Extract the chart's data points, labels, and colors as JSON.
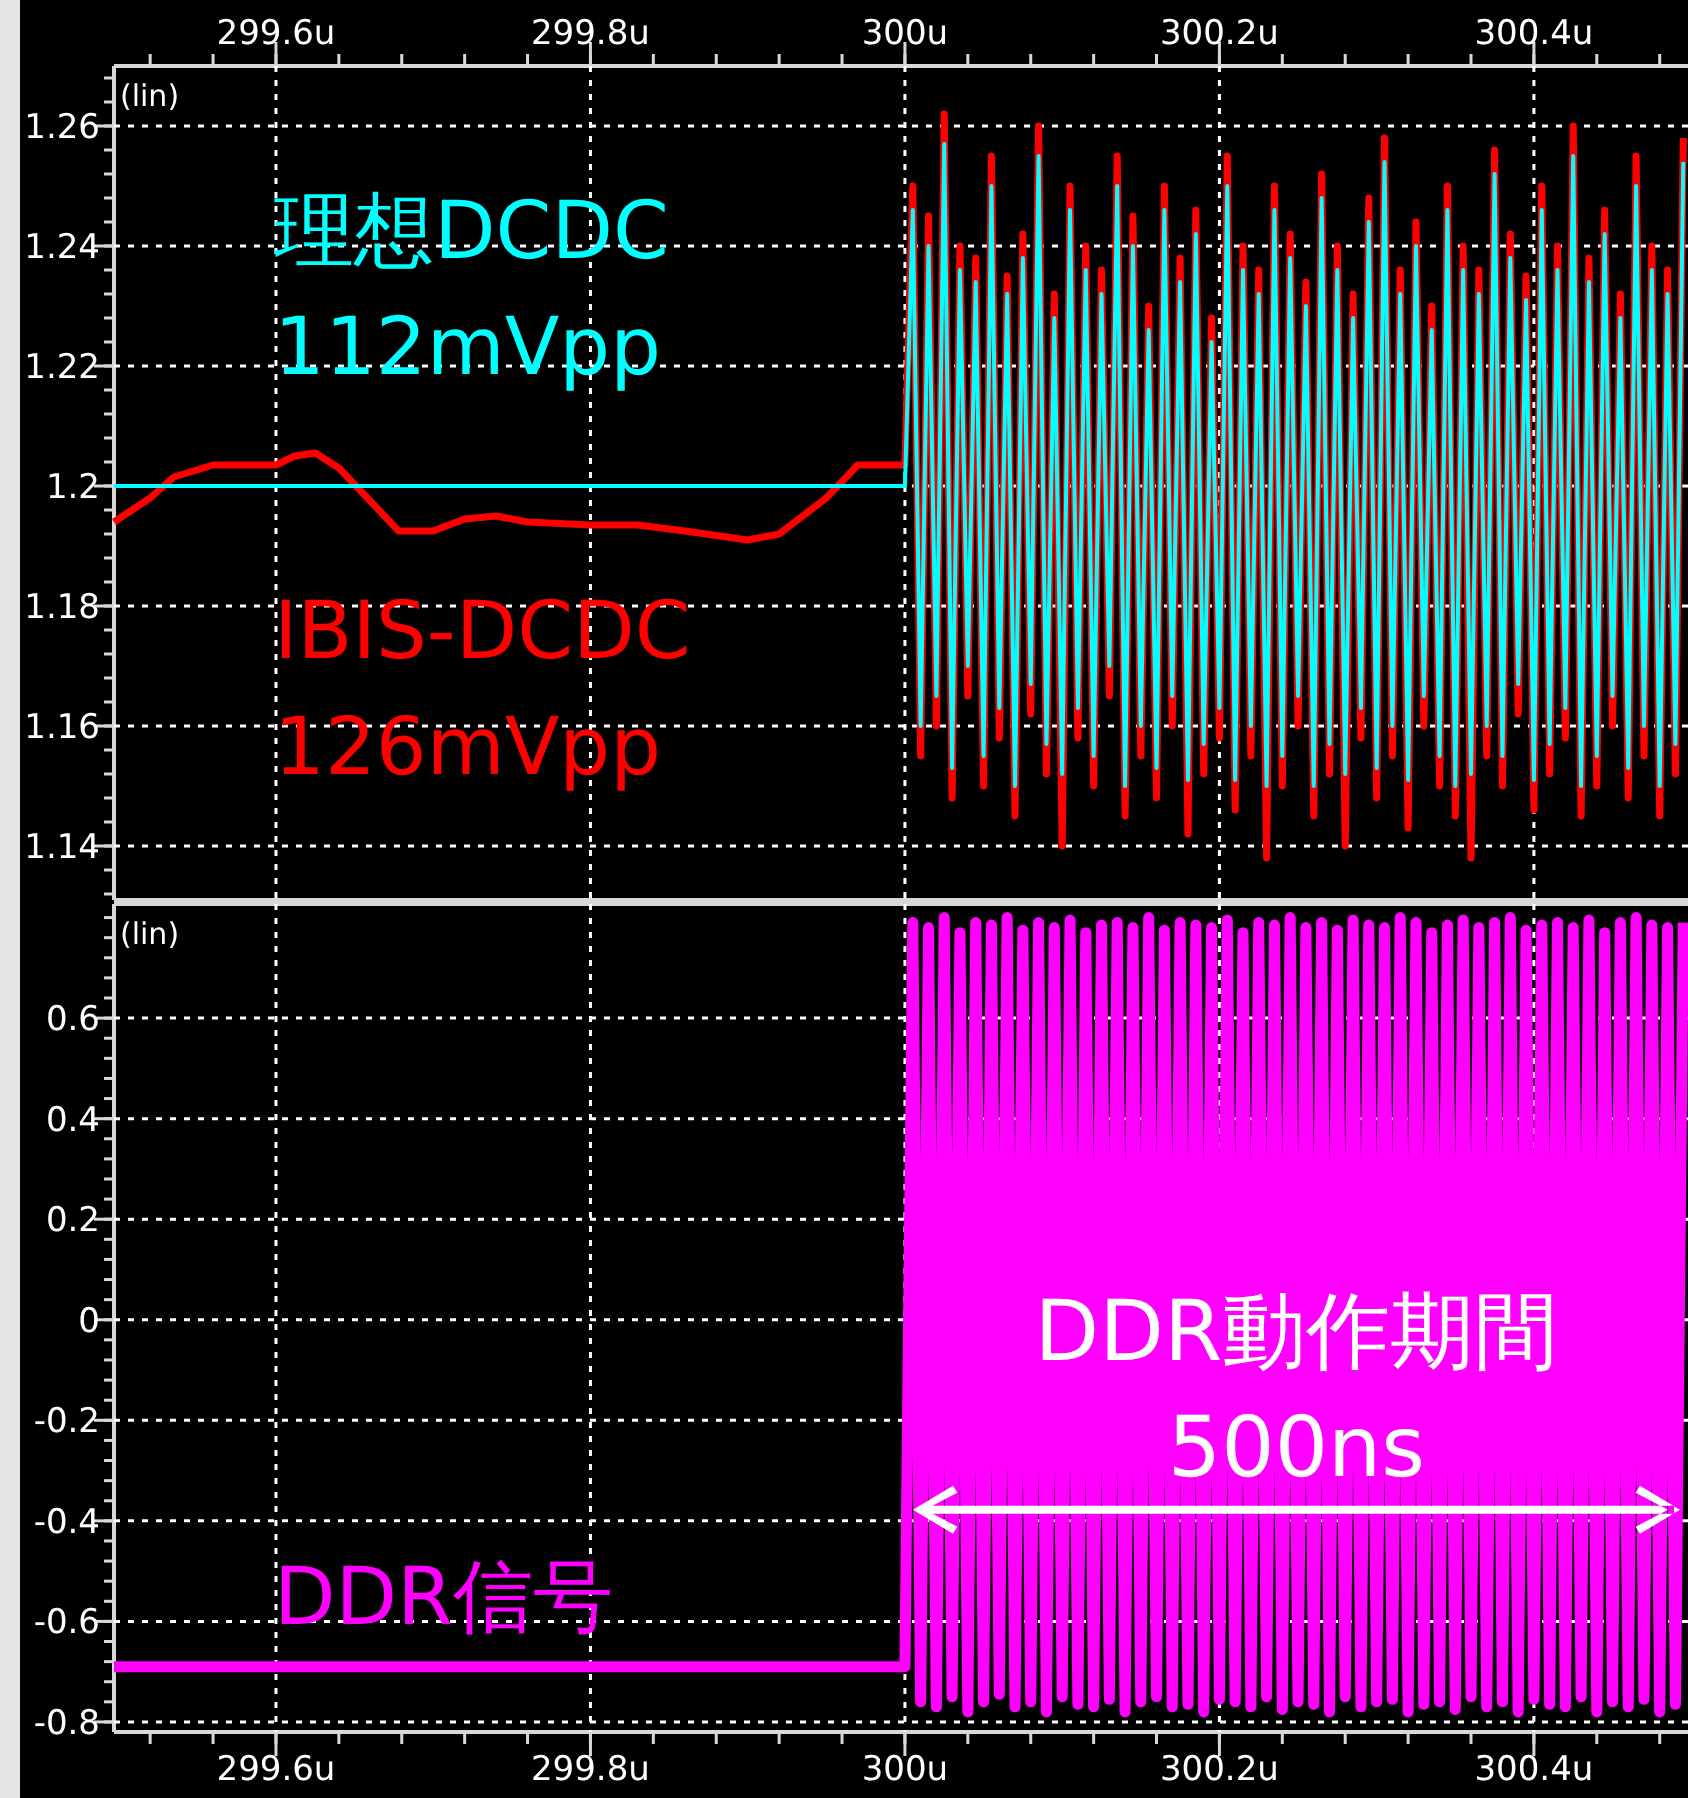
{
  "chart_data": [
    {
      "type": "line",
      "xlim": [
        299.497,
        300.498
      ],
      "xticks": [
        {
          "value": 299.6,
          "label": "299.6u"
        },
        {
          "value": 299.8,
          "label": "299.8u"
        },
        {
          "value": 300.0,
          "label": "300u"
        },
        {
          "value": 300.2,
          "label": "300.2u"
        },
        {
          "value": 300.4,
          "label": "300.4u"
        }
      ],
      "ylim": [
        1.131,
        1.27
      ],
      "yticks": [
        1.14,
        1.16,
        1.18,
        1.2,
        1.22,
        1.24,
        1.26
      ],
      "grid": true,
      "annotations": [
        "(lin)"
      ],
      "series": [
        {
          "name": "IBIS-DCDC 126mVpp",
          "color": "#ff0000",
          "x": [
            299.497,
            299.52,
            299.535,
            299.56,
            299.6,
            299.612,
            299.625,
            299.64,
            299.66,
            299.678,
            299.7,
            299.72,
            299.74,
            299.76,
            299.8,
            299.83,
            299.86,
            299.9,
            299.92,
            299.95,
            299.97,
            300.0,
            300.005,
            300.01,
            300.015,
            300.02,
            300.025,
            300.03,
            300.035,
            300.04,
            300.045,
            300.05,
            300.055,
            300.06,
            300.065,
            300.07,
            300.075,
            300.08,
            300.085,
            300.09,
            300.095,
            300.1,
            300.105,
            300.11,
            300.115,
            300.12,
            300.125,
            300.13,
            300.135,
            300.14,
            300.145,
            300.15,
            300.155,
            300.16,
            300.165,
            300.17,
            300.175,
            300.18,
            300.185,
            300.19,
            300.195,
            300.2,
            300.205,
            300.21,
            300.215,
            300.22,
            300.225,
            300.23,
            300.235,
            300.24,
            300.245,
            300.25,
            300.255,
            300.26,
            300.265,
            300.27,
            300.275,
            300.28,
            300.285,
            300.29,
            300.295,
            300.3,
            300.305,
            300.31,
            300.315,
            300.32,
            300.325,
            300.33,
            300.335,
            300.34,
            300.345,
            300.35,
            300.355,
            300.36,
            300.365,
            300.37,
            300.375,
            300.38,
            300.385,
            300.39,
            300.395,
            300.4,
            300.405,
            300.41,
            300.415,
            300.42,
            300.425,
            300.43,
            300.435,
            300.44,
            300.445,
            300.45,
            300.455,
            300.46,
            300.465,
            300.47,
            300.475,
            300.48,
            300.485,
            300.49,
            300.495
          ],
          "values": [
            1.194,
            1.198,
            1.2015,
            1.2035,
            1.2035,
            1.205,
            1.2055,
            1.203,
            1.1975,
            1.1925,
            1.1925,
            1.1945,
            1.195,
            1.194,
            1.1935,
            1.1935,
            1.1925,
            1.191,
            1.192,
            1.198,
            1.2035,
            1.2035,
            1.25,
            1.155,
            1.245,
            1.16,
            1.262,
            1.148,
            1.24,
            1.165,
            1.238,
            1.15,
            1.255,
            1.158,
            1.235,
            1.145,
            1.242,
            1.162,
            1.26,
            1.152,
            1.232,
            1.14,
            1.25,
            1.158,
            1.24,
            1.15,
            1.236,
            1.165,
            1.255,
            1.145,
            1.245,
            1.155,
            1.23,
            1.148,
            1.25,
            1.16,
            1.238,
            1.142,
            1.246,
            1.152,
            1.228,
            1.158,
            1.255,
            1.146,
            1.24,
            1.155,
            1.236,
            1.138,
            1.25,
            1.15,
            1.242,
            1.16,
            1.234,
            1.145,
            1.252,
            1.152,
            1.24,
            1.14,
            1.232,
            1.158,
            1.248,
            1.148,
            1.258,
            1.155,
            1.236,
            1.143,
            1.244,
            1.16,
            1.23,
            1.15,
            1.25,
            1.145,
            1.24,
            1.138,
            1.236,
            1.155,
            1.256,
            1.15,
            1.242,
            1.162,
            1.235,
            1.146,
            1.25,
            1.152,
            1.24,
            1.158,
            1.26,
            1.145,
            1.238,
            1.15,
            1.246,
            1.16,
            1.232,
            1.148,
            1.255,
            1.155,
            1.24,
            1.145,
            1.236,
            1.152,
            1.258
          ]
        },
        {
          "name": "理想DCDC 112mVpp",
          "color": "#00ffff",
          "x": [
            299.497,
            300.0,
            300.005,
            300.01,
            300.015,
            300.02,
            300.025,
            300.03,
            300.035,
            300.04,
            300.045,
            300.05,
            300.055,
            300.06,
            300.065,
            300.07,
            300.075,
            300.08,
            300.085,
            300.09,
            300.095,
            300.1,
            300.105,
            300.11,
            300.115,
            300.12,
            300.125,
            300.13,
            300.135,
            300.14,
            300.145,
            300.15,
            300.155,
            300.16,
            300.165,
            300.17,
            300.175,
            300.18,
            300.185,
            300.19,
            300.195,
            300.2,
            300.205,
            300.21,
            300.215,
            300.22,
            300.225,
            300.23,
            300.235,
            300.24,
            300.245,
            300.25,
            300.255,
            300.26,
            300.265,
            300.27,
            300.275,
            300.28,
            300.285,
            300.29,
            300.295,
            300.3,
            300.305,
            300.31,
            300.315,
            300.32,
            300.325,
            300.33,
            300.335,
            300.34,
            300.345,
            300.35,
            300.355,
            300.36,
            300.365,
            300.37,
            300.375,
            300.38,
            300.385,
            300.39,
            300.395,
            300.4,
            300.405,
            300.41,
            300.415,
            300.42,
            300.425,
            300.43,
            300.435,
            300.44,
            300.445,
            300.45,
            300.455,
            300.46,
            300.465,
            300.47,
            300.475,
            300.48,
            300.485,
            300.49,
            300.495
          ],
          "values": [
            1.2,
            1.2,
            1.246,
            1.16,
            1.24,
            1.165,
            1.257,
            1.153,
            1.236,
            1.17,
            1.234,
            1.155,
            1.25,
            1.163,
            1.232,
            1.15,
            1.238,
            1.167,
            1.255,
            1.157,
            1.228,
            1.152,
            1.246,
            1.163,
            1.236,
            1.155,
            1.232,
            1.17,
            1.25,
            1.15,
            1.24,
            1.16,
            1.226,
            1.153,
            1.246,
            1.165,
            1.234,
            1.151,
            1.242,
            1.157,
            1.224,
            1.163,
            1.25,
            1.151,
            1.236,
            1.16,
            1.232,
            1.15,
            1.246,
            1.155,
            1.238,
            1.165,
            1.23,
            1.15,
            1.248,
            1.157,
            1.236,
            1.152,
            1.228,
            1.163,
            1.244,
            1.153,
            1.254,
            1.16,
            1.232,
            1.151,
            1.24,
            1.165,
            1.226,
            1.155,
            1.246,
            1.15,
            1.236,
            1.152,
            1.232,
            1.16,
            1.252,
            1.155,
            1.238,
            1.167,
            1.231,
            1.151,
            1.246,
            1.157,
            1.236,
            1.163,
            1.255,
            1.15,
            1.234,
            1.155,
            1.242,
            1.165,
            1.228,
            1.153,
            1.25,
            1.16,
            1.236,
            1.15,
            1.232,
            1.157,
            1.254
          ]
        }
      ]
    },
    {
      "type": "line",
      "xlim": [
        299.497,
        300.498
      ],
      "xticks": [
        {
          "value": 299.6,
          "label": "299.6u"
        },
        {
          "value": 299.8,
          "label": "299.8u"
        },
        {
          "value": 300.0,
          "label": "300u"
        },
        {
          "value": 300.2,
          "label": "300.2u"
        },
        {
          "value": 300.4,
          "label": "300.4u"
        }
      ],
      "ylim": [
        -0.82,
        0.827
      ],
      "yticks": [
        -0.8,
        -0.6,
        -0.4,
        -0.2,
        0,
        0.2,
        0.4,
        0.6
      ],
      "grid": true,
      "annotations": [
        "(lin)",
        {
          "text": "DDR動作期間 500ns",
          "x": 300.249,
          "y": 0
        }
      ],
      "series": [
        {
          "name": "DDR信号",
          "color": "#ff00ff",
          "x": [
            299.497,
            300.0,
            300.005,
            300.01,
            300.015,
            300.02,
            300.025,
            300.03,
            300.035,
            300.04,
            300.045,
            300.05,
            300.055,
            300.06,
            300.065,
            300.07,
            300.075,
            300.08,
            300.085,
            300.09,
            300.095,
            300.1,
            300.105,
            300.11,
            300.115,
            300.12,
            300.125,
            300.13,
            300.135,
            300.14,
            300.145,
            300.15,
            300.155,
            300.16,
            300.165,
            300.17,
            300.175,
            300.18,
            300.185,
            300.19,
            300.195,
            300.2,
            300.205,
            300.21,
            300.215,
            300.22,
            300.225,
            300.23,
            300.235,
            300.24,
            300.245,
            300.25,
            300.255,
            300.26,
            300.265,
            300.27,
            300.275,
            300.28,
            300.285,
            300.29,
            300.295,
            300.3,
            300.305,
            300.31,
            300.315,
            300.32,
            300.325,
            300.33,
            300.335,
            300.34,
            300.345,
            300.35,
            300.355,
            300.36,
            300.365,
            300.37,
            300.375,
            300.38,
            300.385,
            300.39,
            300.395,
            300.4,
            300.405,
            300.41,
            300.415,
            300.42,
            300.425,
            300.43,
            300.435,
            300.44,
            300.445,
            300.45,
            300.455,
            300.46,
            300.465,
            300.47,
            300.475,
            300.48,
            300.485,
            300.49,
            300.495
          ],
          "values": [
            -0.69,
            -0.69,
            0.79,
            -0.76,
            0.78,
            -0.77,
            0.8,
            -0.75,
            0.77,
            -0.78,
            0.79,
            -0.76,
            0.785,
            -0.745,
            0.8,
            -0.77,
            0.775,
            -0.76,
            0.79,
            -0.78,
            0.78,
            -0.75,
            0.795,
            -0.765,
            0.77,
            -0.77,
            0.785,
            -0.755,
            0.79,
            -0.78,
            0.78,
            -0.76,
            0.8,
            -0.75,
            0.775,
            -0.77,
            0.79,
            -0.765,
            0.785,
            -0.78,
            0.78,
            -0.755,
            0.795,
            -0.76,
            0.77,
            -0.77,
            0.79,
            -0.75,
            0.785,
            -0.775,
            0.8,
            -0.76,
            0.78,
            -0.765,
            0.79,
            -0.78,
            0.775,
            -0.75,
            0.795,
            -0.77,
            0.785,
            -0.76,
            0.78,
            -0.755,
            0.8,
            -0.78,
            0.79,
            -0.765,
            0.77,
            -0.76,
            0.785,
            -0.775,
            0.795,
            -0.75,
            0.78,
            -0.77,
            0.79,
            -0.76,
            0.8,
            -0.78,
            0.775,
            -0.755,
            0.785,
            -0.765,
            0.79,
            -0.77,
            0.78,
            -0.75,
            0.795,
            -0.78,
            0.77,
            -0.76,
            0.79,
            -0.77,
            0.8,
            -0.755,
            0.785,
            -0.78,
            0.78,
            -0.765,
            0.79
          ]
        }
      ]
    }
  ]
}
